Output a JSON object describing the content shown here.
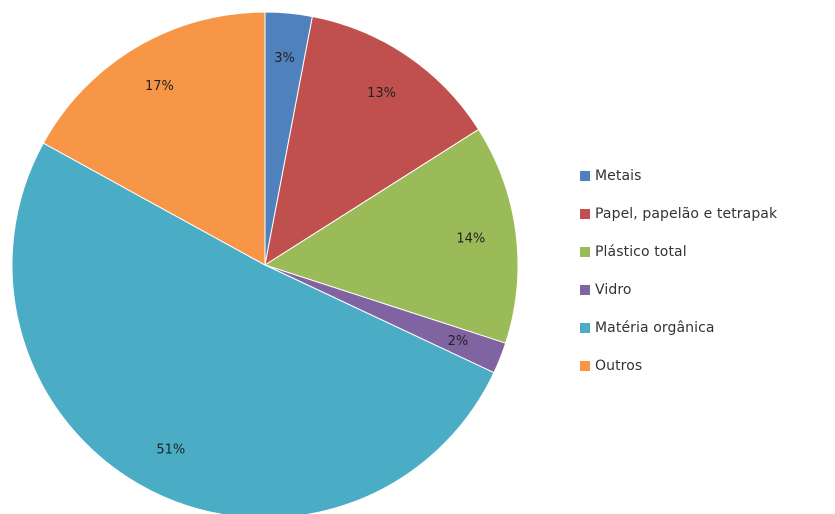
{
  "chart_data": {
    "type": "pie",
    "title": "",
    "start_angle_deg": 0,
    "direction": "clockwise",
    "legend_position": "right",
    "slices": [
      {
        "label": "Metais",
        "value": 3,
        "display": "3%",
        "color": "#4F81BD"
      },
      {
        "label": "Papel, papelão e tetrapak",
        "value": 13,
        "display": "13%",
        "color": "#C0504D"
      },
      {
        "label": "Plástico total",
        "value": 14,
        "display": "14%",
        "color": "#9BBB59"
      },
      {
        "label": "Vidro",
        "value": 2,
        "display": "2%",
        "color": "#8064A2"
      },
      {
        "label": "Matéria orgânica",
        "value": 51,
        "display": "51%",
        "color": "#4BACC6"
      },
      {
        "label": "Outros",
        "value": 17,
        "display": "17%",
        "color": "#F79646"
      }
    ]
  }
}
